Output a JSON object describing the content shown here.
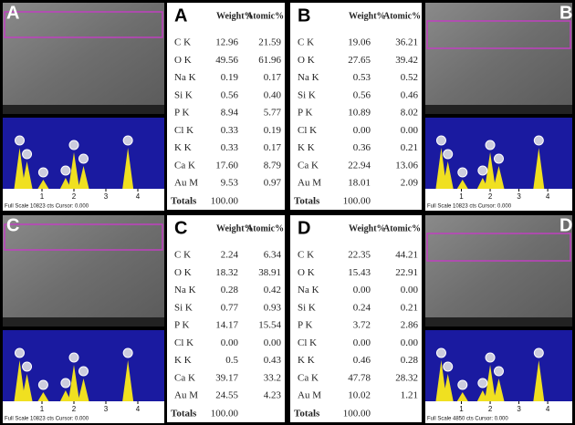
{
  "panels": [
    {
      "label": "A",
      "scale_text": "Full Scale 10823 cts Cursor: 0.000",
      "axis_ticks": [
        "1",
        "2",
        "3",
        "4"
      ],
      "table": {
        "header": [
          "Weight%",
          "Atomic%"
        ],
        "rows": [
          [
            "C K",
            "12.96",
            "21.59"
          ],
          [
            "O K",
            "49.56",
            "61.96"
          ],
          [
            "Na K",
            "0.19",
            "0.17"
          ],
          [
            "Si K",
            "0.56",
            "0.40"
          ],
          [
            "P K",
            "8.94",
            "5.77"
          ],
          [
            "Cl K",
            "0.33",
            "0.19"
          ],
          [
            "K K",
            "0.33",
            "0.17"
          ],
          [
            "Ca K",
            "17.60",
            "8.79"
          ],
          [
            "Au M",
            "9.53",
            "0.97"
          ]
        ],
        "totals": [
          "Totals",
          "100.00"
        ]
      }
    },
    {
      "label": "B",
      "scale_text": "Full Scale 10823 cts Cursor: 0.000",
      "axis_ticks": [
        "1",
        "2",
        "3",
        "4"
      ],
      "table": {
        "header": [
          "Weight%",
          "Atomic%"
        ],
        "rows": [
          [
            "C K",
            "19.06",
            "36.21"
          ],
          [
            "O K",
            "27.65",
            "39.42"
          ],
          [
            "Na K",
            "0.53",
            "0.52"
          ],
          [
            "Si K",
            "0.56",
            "0.46"
          ],
          [
            "P K",
            "10.89",
            "8.02"
          ],
          [
            "Cl K",
            "0.00",
            "0.00"
          ],
          [
            "K K",
            "0.36",
            "0.21"
          ],
          [
            "Ca K",
            "22.94",
            "13.06"
          ],
          [
            "Au M",
            "18.01",
            "2.09"
          ]
        ],
        "totals": [
          "Totals",
          "100.00"
        ]
      }
    },
    {
      "label": "C",
      "scale_text": "Full Scale 10823 cts Cursor: 0.000",
      "axis_ticks": [
        "1",
        "2",
        "3",
        "4"
      ],
      "table": {
        "header": [
          "Weight%",
          "Atomic%"
        ],
        "rows": [
          [
            "C K",
            "2.24",
            "6.34"
          ],
          [
            "O K",
            "18.32",
            "38.91"
          ],
          [
            "Na K",
            "0.28",
            "0.42"
          ],
          [
            "Si K",
            "0.77",
            "0.93"
          ],
          [
            "P K",
            "14.17",
            "15.54"
          ],
          [
            "Cl K",
            "0.00",
            "0.00"
          ],
          [
            "K K",
            "0.5",
            "0.43"
          ],
          [
            "Ca K",
            "39.17",
            "33.2"
          ],
          [
            "Au M",
            "24.55",
            "4.23"
          ]
        ],
        "totals": [
          "Totals",
          "100.00"
        ]
      }
    },
    {
      "label": "D",
      "scale_text": "Full Scale 4850 cts Cursor: 0.000",
      "axis_ticks": [
        "1",
        "2",
        "3",
        "4"
      ],
      "table": {
        "header": [
          "Weight%",
          "Atomic%"
        ],
        "rows": [
          [
            "C K",
            "22.35",
            "44.21"
          ],
          [
            "O K",
            "15.43",
            "22.91"
          ],
          [
            "Na K",
            "0.00",
            "0.00"
          ],
          [
            "Si K",
            "0.24",
            "0.21"
          ],
          [
            "P K",
            "3.72",
            "2.86"
          ],
          [
            "Cl K",
            "0.00",
            "0.00"
          ],
          [
            "K K",
            "0.46",
            "0.28"
          ],
          [
            "Ca K",
            "47.78",
            "28.32"
          ],
          [
            "Au M",
            "10.02",
            "1.21"
          ]
        ],
        "totals": [
          "Totals",
          "100.00"
        ]
      }
    }
  ]
}
